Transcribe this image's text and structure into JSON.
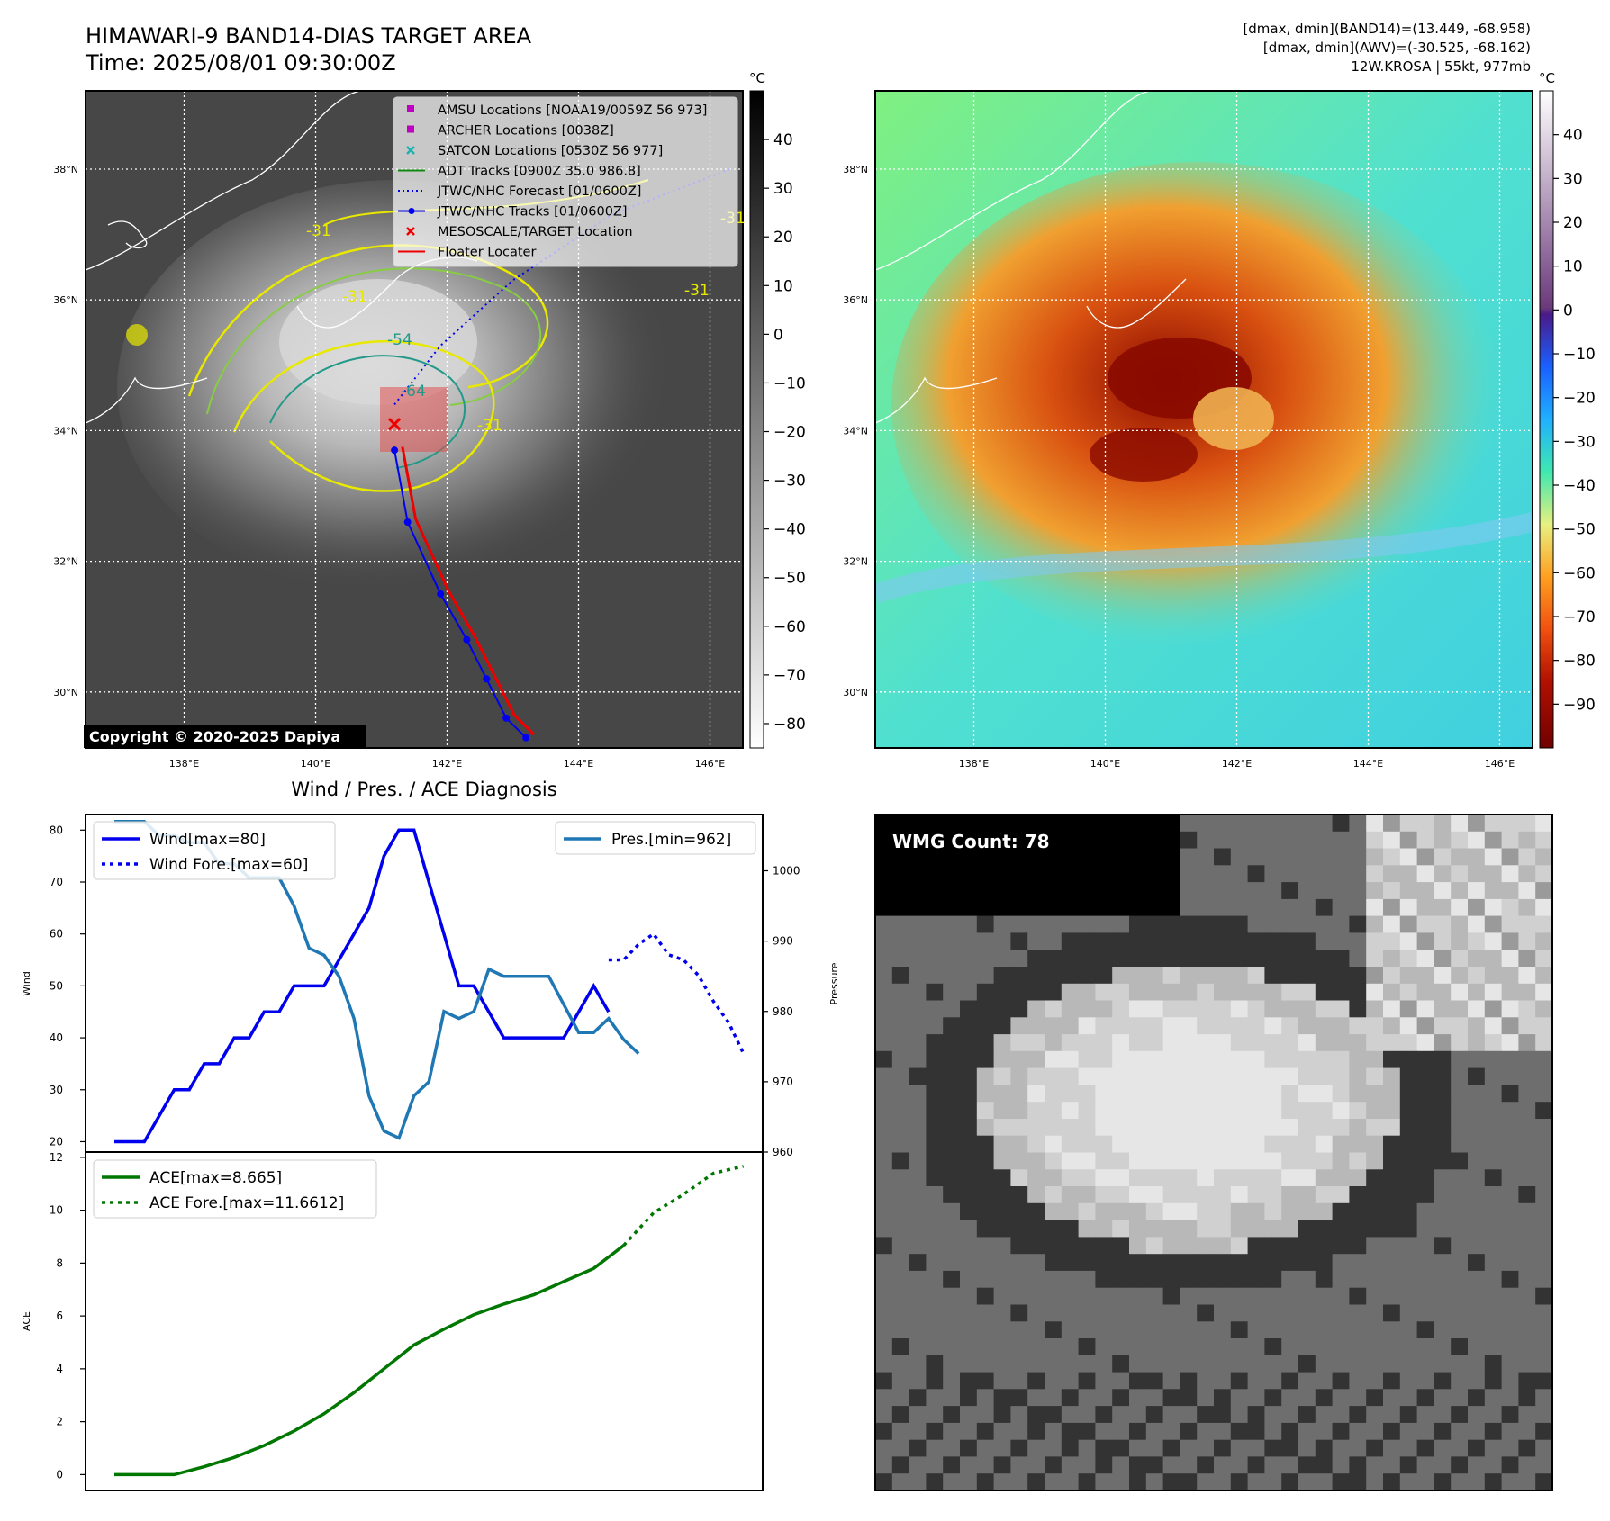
{
  "header": {
    "title_line1": "HIMAWARI-9 BAND14-DIAS TARGET AREA",
    "title_line2": "Time: 2025/08/01 09:30:00Z",
    "info_line1": "[dmax, dmin](BAND14)=(13.449, -68.958)",
    "info_line2": "[dmax, dmin](AWV)=(-30.525, -68.162)",
    "info_line3": "12W.KROSA | 55kt, 977mb",
    "copyright": "Copyright © 2020-2025 Dapiya"
  },
  "maps": {
    "lat_labels": [
      "38°N",
      "36°N",
      "34°N",
      "32°N",
      "30°N"
    ],
    "lat_values": [
      38,
      36,
      34,
      32,
      30
    ],
    "lon_labels": [
      "138°E",
      "140°E",
      "142°E",
      "144°E",
      "146°E"
    ],
    "lon_values": [
      138,
      140,
      142,
      144,
      146
    ],
    "contour_labels": [
      "-31",
      "-31",
      "-54",
      "-64",
      "-31",
      "-31",
      "-31"
    ],
    "colorbar1": {
      "unit": "°C",
      "ticks": [
        "40",
        "30",
        "20",
        "10",
        "0",
        "−10",
        "−20",
        "−30",
        "−40",
        "−50",
        "−60",
        "−70",
        "−80"
      ],
      "values": [
        40,
        30,
        20,
        10,
        0,
        -10,
        -20,
        -30,
        -40,
        -50,
        -60,
        -70,
        -80
      ],
      "range": [
        -85,
        50
      ]
    },
    "colorbar2": {
      "unit": "°C",
      "ticks": [
        "40",
        "30",
        "20",
        "10",
        "0",
        "−10",
        "−20",
        "−30",
        "−40",
        "−50",
        "−60",
        "−70",
        "−80",
        "−90"
      ],
      "values": [
        40,
        30,
        20,
        10,
        0,
        -10,
        -20,
        -30,
        -40,
        -50,
        -60,
        -70,
        -80,
        -90
      ],
      "range": [
        -100,
        50
      ]
    },
    "legend": [
      {
        "label": "AMSU Locations [NOAA19/0059Z 56 973]",
        "color": "#c000c0",
        "marker": "square"
      },
      {
        "label": "ARCHER Locations [0038Z]",
        "color": "#c000c0",
        "marker": "square"
      },
      {
        "label": "SATCON Locations [0530Z 56 977]",
        "color": "#20b0b0",
        "marker": "x"
      },
      {
        "label": "ADT Tracks [0900Z 35.0 986.8]",
        "color": "#118811",
        "marker": "line"
      },
      {
        "label": "JTWC/NHC Forecast [01/0600Z]",
        "color": "#0000ee",
        "marker": "dotted"
      },
      {
        "label": "JTWC/NHC Tracks [01/0600Z]",
        "color": "#0000ee",
        "marker": "line-dot"
      },
      {
        "label": "MESOSCALE/TARGET Location",
        "color": "#ee0000",
        "marker": "x"
      },
      {
        "label": "Floater Locater",
        "color": "#ee0000",
        "marker": "line"
      }
    ],
    "jtwc_track": [
      [
        33.7,
        141.2
      ],
      [
        32.6,
        141.4
      ],
      [
        31.5,
        141.9
      ],
      [
        30.8,
        142.3
      ],
      [
        30.2,
        142.6
      ],
      [
        29.6,
        142.9
      ],
      [
        29.3,
        143.2
      ]
    ],
    "jtwc_forecast": [
      [
        34.4,
        141.2
      ],
      [
        35.3,
        141.9
      ],
      [
        36.3,
        143.0
      ],
      [
        37.3,
        144.5
      ],
      [
        38.0,
        146.3
      ]
    ],
    "target_location": [
      34.1,
      141.2
    ]
  },
  "wmg": {
    "label": "WMG Count: 78"
  },
  "chart_data": [
    {
      "type": "line",
      "title": "Wind / Pres. / ACE Diagnosis",
      "ylabel": "Wind",
      "ylabel_right": "Pressure",
      "ylim": [
        18,
        83
      ],
      "ylim_right": [
        960,
        1008
      ],
      "yticks": [
        20,
        30,
        40,
        50,
        60,
        70,
        80
      ],
      "yticks_right": [
        960,
        970,
        980,
        990,
        1000
      ],
      "x_range": [
        0,
        41
      ],
      "series": [
        {
          "name": "Wind[max=80]",
          "x": [
            0,
            1,
            2,
            3,
            4,
            5,
            6,
            7,
            8,
            9,
            10,
            11,
            12,
            13,
            14,
            15,
            16,
            17,
            18,
            19,
            20,
            21,
            22,
            23,
            24,
            25,
            26,
            27,
            28,
            29,
            30,
            31,
            32,
            33
          ],
          "values": [
            20,
            20,
            20,
            25,
            30,
            30,
            35,
            35,
            40,
            40,
            45,
            45,
            50,
            50,
            50,
            55,
            60,
            65,
            75,
            80,
            80,
            70,
            60,
            50,
            50,
            45,
            40,
            40,
            40,
            40,
            40,
            45,
            50,
            45
          ]
        },
        {
          "name": "Wind Fore.[max=60]",
          "x": [
            33,
            34,
            35,
            36,
            37,
            38,
            39,
            40,
            41,
            42
          ],
          "values": [
            55,
            55,
            58,
            60,
            56,
            55,
            52,
            47,
            43,
            37
          ]
        },
        {
          "name": "Pres.[min=962]",
          "x": [
            0,
            1,
            2,
            3,
            4,
            5,
            6,
            7,
            8,
            9,
            10,
            11,
            12,
            13,
            14,
            15,
            16,
            17,
            18,
            19,
            20,
            21,
            22,
            23,
            24,
            25,
            26,
            27,
            28,
            29,
            30,
            31,
            32,
            33,
            34,
            35
          ],
          "values": [
            1007,
            1007,
            1007,
            1005,
            1005,
            1004,
            1004,
            1001,
            1001,
            999,
            999,
            999,
            995,
            989,
            988,
            985,
            979,
            968,
            963,
            962,
            968,
            970,
            980,
            979,
            980,
            986,
            985,
            985,
            985,
            985,
            981,
            977,
            977,
            979,
            976,
            974
          ]
        }
      ]
    },
    {
      "type": "line",
      "ylabel": "ACE",
      "ylim": [
        -0.6,
        12.2
      ],
      "yticks": [
        0,
        2,
        4,
        6,
        8,
        10,
        12
      ],
      "x_range": [
        0,
        41
      ],
      "series": [
        {
          "name": "ACE[max=8.665]",
          "x": [
            0,
            2,
            4,
            6,
            8,
            10,
            12,
            14,
            16,
            18,
            20,
            22,
            24,
            26,
            28,
            30,
            32,
            34
          ],
          "values": [
            0,
            0,
            0,
            0.3,
            0.65,
            1.1,
            1.65,
            2.3,
            3.1,
            4.0,
            4.9,
            5.5,
            6.05,
            6.45,
            6.8,
            7.3,
            7.8,
            8.665
          ]
        },
        {
          "name": "ACE Fore.[max=11.6612]",
          "x": [
            34,
            36,
            38,
            40,
            42
          ],
          "values": [
            8.665,
            9.9,
            10.6,
            11.4,
            11.6612
          ]
        }
      ]
    }
  ]
}
